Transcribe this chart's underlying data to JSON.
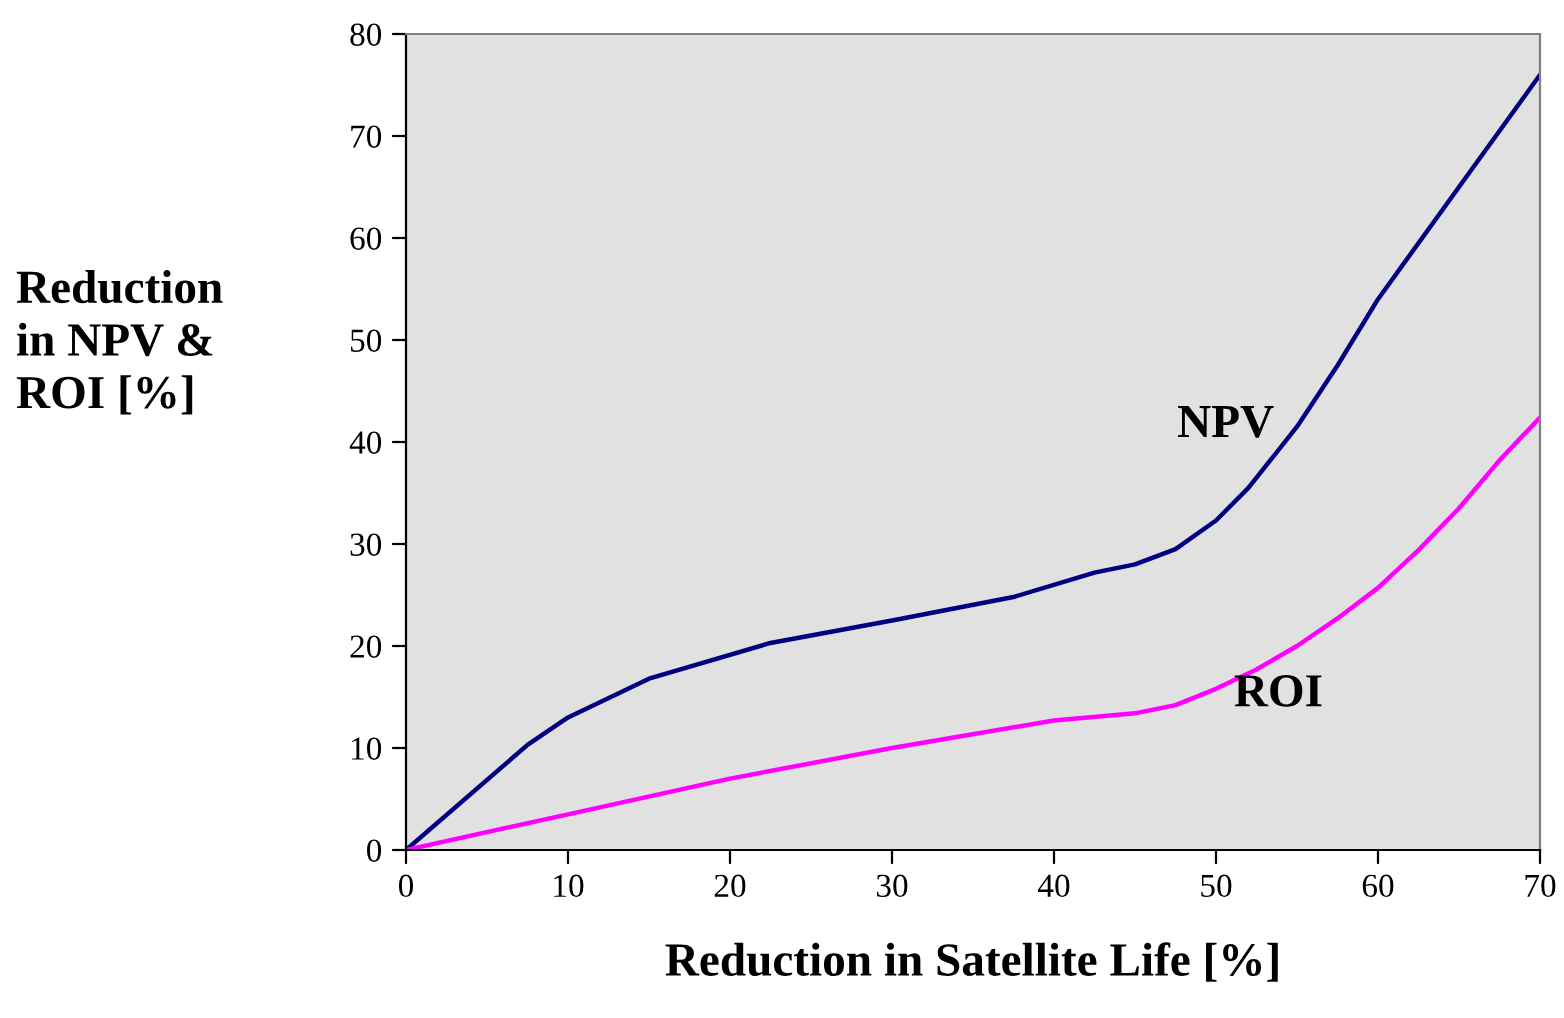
{
  "chart_data": {
    "type": "line",
    "xlabel": "Reduction in Satellite Life [%]",
    "ylabel": "Reduction\nin NPV &\nROI [%]",
    "xlim": [
      0,
      70
    ],
    "xticks": [
      0,
      10,
      20,
      30,
      40,
      50,
      60,
      70
    ],
    "ylim": [
      0,
      80
    ],
    "yticks": [
      0,
      10,
      20,
      30,
      40,
      50,
      60,
      70,
      80
    ],
    "grid": false,
    "legend": false,
    "series": [
      {
        "name": "NPV",
        "color": "#000080",
        "x": [
          0,
          7.5,
          10,
          15,
          22.5,
          30,
          37.5,
          42.5,
          45,
          47.5,
          50,
          52,
          55,
          57.5,
          60,
          65,
          70
        ],
        "values": [
          0,
          10.3,
          13,
          16.8,
          20.3,
          22.5,
          24.8,
          27.2,
          28,
          29.5,
          32.3,
          35.5,
          41.5,
          47.5,
          54,
          65,
          76
        ]
      },
      {
        "name": "ROI",
        "color": "#ff00ff",
        "x": [
          0,
          10,
          20,
          30,
          40,
          45,
          47.5,
          50,
          52.5,
          55,
          57.5,
          60,
          62.5,
          65,
          67.5,
          70
        ],
        "values": [
          0,
          3.5,
          7,
          10,
          12.7,
          13.4,
          14.2,
          15.8,
          17.7,
          20,
          22.7,
          25.7,
          29.4,
          33.5,
          38.2,
          42.4
        ]
      }
    ]
  }
}
